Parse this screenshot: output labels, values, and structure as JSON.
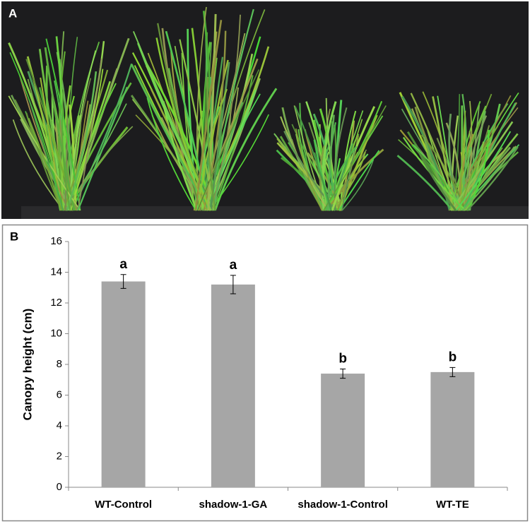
{
  "panel_a": {
    "label": "A"
  },
  "chart_data": {
    "type": "bar",
    "panel_label": "B",
    "y_label": "Canopy height (cm)",
    "categories": [
      "WT-Control",
      "shadow-1-GA",
      "shadow-1-Control",
      "WT-TE"
    ],
    "values": [
      13.4,
      13.2,
      7.4,
      7.5
    ],
    "errors": [
      0.45,
      0.6,
      0.3,
      0.3
    ],
    "annotations": [
      "a",
      "a",
      "b",
      "b"
    ],
    "color": "#a6a6a6",
    "ylim": [
      0,
      16
    ],
    "yticks": [
      0,
      2,
      4,
      6,
      8,
      10,
      12,
      14,
      16
    ]
  }
}
